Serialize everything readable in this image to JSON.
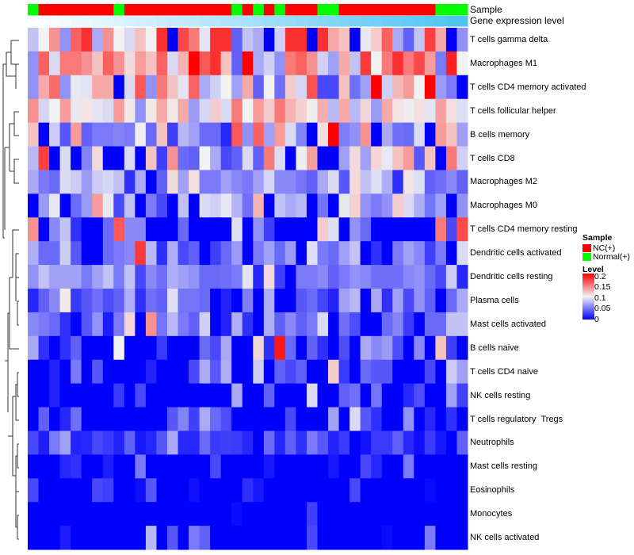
{
  "chart_data": {
    "type": "heatmap",
    "title": "",
    "annotation_labels": {
      "sample": "Sample",
      "gene_expression": "Gene expression level"
    },
    "rows": [
      "T cells gamma delta",
      "Macrophages M1",
      "T cells CD4 memory activated",
      "T cells follicular helper",
      "B cells memory",
      "T cells CD8",
      "Macrophages M2",
      "Macrophages M0",
      "T cells CD4 memory resting",
      "Dendritic cells activated",
      "Dendritic cells resting",
      "Plasma cells",
      "Mast cells activated",
      "B cells naive",
      "T cells CD4 naive",
      "NK cells resting",
      "T cells regulatory  Tregs",
      "Neutrophils",
      "Mast cells resting",
      "Eosinophils",
      "Monocytes",
      "NK cells activated"
    ],
    "sample_groups": [
      1,
      0,
      0,
      0,
      0,
      0,
      0,
      0,
      1,
      0,
      0,
      0,
      0,
      0,
      0,
      0,
      0,
      0,
      0,
      1,
      0,
      1,
      0,
      1,
      0,
      0,
      0,
      1,
      1,
      0,
      0,
      0,
      0,
      0,
      0,
      0,
      0,
      0,
      1,
      1,
      1
    ],
    "gene_expression_level": [
      0,
      0.025,
      0.05,
      0.075,
      0.1,
      0.125,
      0.15,
      0.175,
      0.2,
      0.225,
      0.25,
      0.275,
      0.3,
      0.325,
      0.35,
      0.375,
      0.4,
      0.425,
      0.45,
      0.475,
      0.5,
      0.525,
      0.55,
      0.575,
      0.6,
      0.625,
      0.65,
      0.675,
      0.7,
      0.725,
      0.75,
      0.775,
      0.8,
      0.825,
      0.85,
      0.875,
      0.9,
      0.925,
      0.95,
      0.975,
      1
    ],
    "values": [
      [
        0.08,
        0.1,
        0.14,
        0.06,
        0.16,
        0.18,
        0.07,
        0.14,
        0.1,
        0.09,
        0.12,
        0.1,
        0.18,
        0,
        0.17,
        0.15,
        0.094,
        0.18,
        0.18,
        0.04,
        0.08,
        0.07,
        0,
        0.086,
        0.18,
        0.18,
        0,
        0.18,
        0.13,
        0.12,
        0,
        0.096,
        0.116,
        0.16,
        0.07,
        0.04,
        0.08,
        0.174,
        0.13,
        0,
        0.06
      ],
      [
        0.06,
        0.16,
        0.09,
        0.15,
        0.15,
        0.14,
        0.12,
        0.16,
        0.14,
        0.11,
        0.136,
        0.12,
        0.16,
        0.09,
        0.126,
        0.2,
        0.164,
        0.18,
        0.12,
        0.04,
        0.2,
        0.07,
        0.086,
        0.06,
        0.15,
        0.16,
        0.14,
        0.086,
        0.066,
        0.13,
        0.08,
        0.176,
        0.1,
        0.15,
        0.18,
        0.15,
        0.17,
        0.136,
        0.05,
        0.186,
        0.1
      ],
      [
        0.06,
        0.13,
        0.156,
        0.06,
        0.096,
        0.094,
        0.13,
        0.13,
        0,
        0.09,
        0.164,
        0.06,
        0.15,
        0.12,
        0.094,
        0.16,
        0.07,
        0.086,
        0.1,
        0.066,
        0.13,
        0.04,
        0.1,
        0.046,
        0.116,
        0.088,
        0.166,
        0.03,
        0.03,
        0.12,
        0.046,
        0.066,
        0.2,
        0.086,
        0.124,
        0.136,
        0.1,
        0.2,
        0.064,
        0.05,
        0
      ],
      [
        0.14,
        0.088,
        0.1,
        0.136,
        0.096,
        0.106,
        0.094,
        0.09,
        0.136,
        0.104,
        0.06,
        0.104,
        0.13,
        0.104,
        0.13,
        0.064,
        0.088,
        0.116,
        0.09,
        0.15,
        0.1,
        0.136,
        0.116,
        0.15,
        0.126,
        0.114,
        0.102,
        0.128,
        0.076,
        0.13,
        0.076,
        0.112,
        0.064,
        0.13,
        0.106,
        0.098,
        0.108,
        0.094,
        0.134,
        0.108,
        0.092
      ],
      [
        0.12,
        0,
        0.084,
        0.036,
        0.136,
        0.04,
        0.05,
        0.05,
        0.054,
        0.05,
        0.102,
        0.044,
        0.12,
        0.026,
        0.076,
        0.066,
        0.044,
        0.044,
        0.016,
        0.164,
        0.06,
        0.16,
        0.066,
        0.136,
        0.09,
        0.054,
        0,
        0.108,
        0.2,
        0.052,
        0.06,
        0.14,
        0,
        0.07,
        0.046,
        0.044,
        0.09,
        0,
        0.136,
        0.12,
        0.066
      ],
      [
        0.076,
        0.174,
        0,
        0.09,
        0,
        0.054,
        0.11,
        0,
        0,
        0.09,
        0,
        0.12,
        0.026,
        0.14,
        0.044,
        0.04,
        0.1,
        0.07,
        0.03,
        0.04,
        0.09,
        0.04,
        0.15,
        0.09,
        0,
        0.098,
        0.134,
        0,
        0,
        0.066,
        0.11,
        0.066,
        0.112,
        0.096,
        0.12,
        0.136,
        0.036,
        0.12,
        0,
        0.15,
        0.086
      ],
      [
        0.07,
        0.05,
        0.044,
        0.09,
        0.084,
        0.064,
        0.084,
        0.088,
        0.08,
        0.02,
        0.07,
        0,
        0.04,
        0.11,
        0.066,
        0.108,
        0.05,
        0.05,
        0.066,
        0.056,
        0.05,
        0.066,
        0.088,
        0.056,
        0.056,
        0.048,
        0.04,
        0.07,
        0.09,
        0.036,
        0.11,
        0.08,
        0.092,
        0.072,
        0.02,
        0.106,
        0.092,
        0.04,
        0.046,
        0.056,
        0.04
      ],
      [
        0,
        0.064,
        0.096,
        0,
        0.044,
        0.064,
        0.136,
        0.096,
        0.03,
        0.08,
        0,
        0.05,
        0.03,
        0,
        0.08,
        0,
        0.09,
        0.086,
        0.096,
        0.074,
        0.046,
        0.126,
        0,
        0.08,
        0.07,
        0.076,
        0,
        0.048,
        0,
        0.096,
        0.114,
        0.06,
        0.05,
        0.06,
        0.116,
        0.09,
        0.072,
        0.048,
        0.066,
        0,
        0.06
      ],
      [
        0.14,
        0,
        0.056,
        0.08,
        0.02,
        0,
        0,
        0.044,
        0.164,
        0.056,
        0.056,
        0,
        0,
        0,
        0.044,
        0,
        0,
        0,
        0,
        0.092,
        0,
        0.06,
        0.026,
        0,
        0,
        0,
        0,
        0.116,
        0.092,
        0,
        0.06,
        0.044,
        0,
        0,
        0,
        0,
        0,
        0,
        0.15,
        0.03,
        0.17
      ],
      [
        0.072,
        0.044,
        0.044,
        0.084,
        0.036,
        0,
        0,
        0.044,
        0.05,
        0.056,
        0.176,
        0.076,
        0.02,
        0.072,
        0.03,
        0.04,
        0,
        0.026,
        0.044,
        0.064,
        0,
        0.05,
        0.066,
        0.044,
        0.064,
        0,
        0.092,
        0.05,
        0.044,
        0.066,
        0.08,
        0,
        0.02,
        0,
        0.05,
        0.066,
        0.056,
        0.026,
        0.05,
        0,
        0.09
      ],
      [
        0.06,
        0.08,
        0.066,
        0.066,
        0.066,
        0.05,
        0.066,
        0.08,
        0.05,
        0.08,
        0.03,
        0.056,
        0.046,
        0.072,
        0.066,
        0.06,
        0.044,
        0.044,
        0.046,
        0.05,
        0.094,
        0.016,
        0.11,
        0.026,
        0,
        0.05,
        0.05,
        0.056,
        0.04,
        0.05,
        0.06,
        0.056,
        0.046,
        0.046,
        0.046,
        0.056,
        0.06,
        0.044,
        0.03,
        0.084,
        0.016
      ],
      [
        0.016,
        0.04,
        0.056,
        0.104,
        0.024,
        0.036,
        0.046,
        0.032,
        0.04,
        0.072,
        0.02,
        0.046,
        0.04,
        0.092,
        0.048,
        0.048,
        0.044,
        0,
        0.014,
        0,
        0.052,
        0,
        0.072,
        0,
        0,
        0.036,
        0.044,
        0.028,
        0.014,
        0.066,
        0.076,
        0,
        0.07,
        0.02,
        0.066,
        0.03,
        0.06,
        0.04,
        0,
        0.044,
        0.07
      ],
      [
        0.056,
        0.05,
        0.044,
        0.02,
        0,
        0.036,
        0.06,
        0.012,
        0.05,
        0.112,
        0,
        0.14,
        0.048,
        0.076,
        0.05,
        0.04,
        0.086,
        0,
        0.014,
        0.072,
        0.02,
        0,
        0.072,
        0.04,
        0.056,
        0.04,
        0.05,
        0.09,
        0,
        0.046,
        0.032,
        0,
        0,
        0.044,
        0.054,
        0.024,
        0,
        0.044,
        0.044,
        0.08,
        0.08
      ],
      [
        0.07,
        0.02,
        0,
        0.02,
        0.04,
        0,
        0,
        0,
        0.1,
        0,
        0,
        0,
        0.024,
        0,
        0,
        0,
        0.044,
        0.03,
        0.07,
        0,
        0,
        0.112,
        0.02,
        0.19,
        0.044,
        0,
        0.04,
        0.02,
        0,
        0.032,
        0,
        0.07,
        0.056,
        0.064,
        0.032,
        0,
        0.056,
        0,
        0.12,
        0.026,
        0
      ],
      [
        0,
        0,
        0.014,
        0,
        0.05,
        0,
        0.036,
        0,
        0,
        0,
        0,
        0.014,
        0,
        0,
        0,
        0.03,
        0.07,
        0.036,
        0.072,
        0,
        0,
        0.084,
        0,
        0.04,
        0.03,
        0.04,
        0,
        0,
        0.116,
        0.024,
        0,
        0.044,
        0.036,
        0.036,
        0,
        0,
        0,
        0.03,
        0,
        0.084,
        0.066
      ],
      [
        0,
        0,
        0.014,
        0,
        0,
        0,
        0,
        0,
        0.024,
        0,
        0.03,
        0,
        0,
        0,
        0,
        0,
        0,
        0,
        0,
        0.07,
        0,
        0,
        0.04,
        0,
        0,
        0,
        0.09,
        0,
        0,
        0.04,
        0.046,
        0,
        0.048,
        0,
        0,
        0.016,
        0.032,
        0,
        0,
        0.066,
        0.026
      ],
      [
        0,
        0.04,
        0,
        0.016,
        0.046,
        0,
        0,
        0,
        0,
        0,
        0,
        0,
        0,
        0.036,
        0.054,
        0.026,
        0.07,
        0.044,
        0.032,
        0,
        0,
        0,
        0,
        0,
        0.03,
        0,
        0,
        0,
        0.066,
        0,
        0.09,
        0.036,
        0.02,
        0,
        0,
        0.06,
        0,
        0.016,
        0,
        0.02,
        0
      ],
      [
        0.03,
        0.012,
        0.05,
        0.066,
        0.014,
        0.016,
        0.03,
        0.024,
        0.014,
        0.04,
        0.01,
        0.016,
        0.036,
        0.07,
        0.016,
        0.016,
        0.044,
        0.024,
        0.026,
        0.024,
        0.016,
        0,
        0.044,
        0.016,
        0.04,
        0.02,
        0.05,
        0.036,
        0.014,
        0.024,
        0,
        0.008,
        0.024,
        0.024,
        0.04,
        0.016,
        0.006,
        0.024,
        0.01,
        0,
        0.04
      ],
      [
        0,
        0,
        0,
        0.016,
        0.02,
        0,
        0,
        0.012,
        0,
        0,
        0.05,
        0,
        0,
        0,
        0,
        0,
        0,
        0.03,
        0,
        0,
        0,
        0,
        0.01,
        0,
        0,
        0,
        0,
        0,
        0.01,
        0,
        0,
        0.03,
        0.016,
        0,
        0,
        0.05,
        0,
        0,
        0,
        0,
        0
      ],
      [
        0.03,
        0,
        0,
        0,
        0,
        0,
        0.03,
        0.026,
        0,
        0,
        0.006,
        0.036,
        0,
        0,
        0,
        0.006,
        0,
        0,
        0,
        0,
        0.02,
        0.01,
        0,
        0,
        0,
        0,
        0,
        0,
        0,
        0,
        0.03,
        0,
        0,
        0,
        0,
        0,
        0,
        0.004,
        0,
        0,
        0
      ],
      [
        0,
        0,
        0,
        0,
        0,
        0,
        0,
        0,
        0,
        0,
        0,
        0,
        0,
        0,
        0,
        0,
        0,
        0,
        0,
        0.004,
        0,
        0,
        0,
        0,
        0,
        0,
        0.026,
        0,
        0,
        0,
        0,
        0,
        0,
        0,
        0,
        0,
        0,
        0,
        0,
        0,
        0
      ],
      [
        0,
        0,
        0,
        0.012,
        0,
        0,
        0,
        0,
        0,
        0,
        0,
        0.076,
        0,
        0.036,
        0,
        0.05,
        0.04,
        0,
        0,
        0,
        0,
        0,
        0,
        0,
        0,
        0,
        0.03,
        0,
        0,
        0,
        0,
        0,
        0,
        0.004,
        0,
        0,
        0,
        0.05,
        0,
        0,
        0
      ]
    ],
    "color_scale": {
      "low": "#0000ff",
      "mid": "#f2f2f2",
      "high": "#ff0000",
      "range": [
        0,
        0.2
      ],
      "mid_value": 0.1
    },
    "gene_level_colors": {
      "low": "#ffffff",
      "high": "#4cc4f5"
    },
    "legend": {
      "placement": "right",
      "sample_title": "Sample",
      "sample_entries": [
        {
          "label": "NC(+)",
          "color": "#ff0000"
        },
        {
          "label": "Normal(+)",
          "color": "#00ff00"
        }
      ],
      "level_title": "Level",
      "level_ticks": [
        "0.2",
        "0.15",
        "0.1",
        "0.05",
        "0"
      ]
    }
  }
}
